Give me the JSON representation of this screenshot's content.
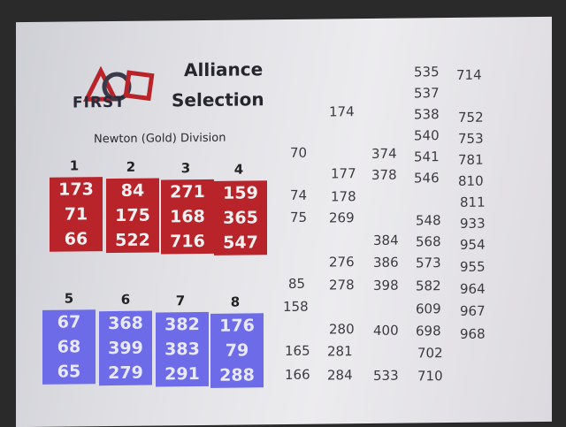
{
  "logo": {
    "text": "FIRST"
  },
  "title": {
    "line1": "Alliance",
    "line2": "Selection"
  },
  "division": "Newton (Gold) Division",
  "alliances": [
    {
      "seed": "1",
      "teams": [
        "173",
        "71",
        "66"
      ],
      "color": "#b8242a"
    },
    {
      "seed": "2",
      "teams": [
        "84",
        "175",
        "522"
      ],
      "color": "#b8242a"
    },
    {
      "seed": "3",
      "teams": [
        "271",
        "168",
        "716"
      ],
      "color": "#b8242a"
    },
    {
      "seed": "4",
      "teams": [
        "159",
        "365",
        "547"
      ],
      "color": "#b8242a"
    },
    {
      "seed": "5",
      "teams": [
        "67",
        "68",
        "65"
      ],
      "color": "#6d6be8"
    },
    {
      "seed": "6",
      "teams": [
        "368",
        "399",
        "279"
      ],
      "color": "#6d6be8"
    },
    {
      "seed": "7",
      "teams": [
        "382",
        "383",
        "291"
      ],
      "color": "#6d6be8"
    },
    {
      "seed": "8",
      "teams": [
        "176",
        "79",
        "288"
      ],
      "color": "#6d6be8"
    }
  ],
  "columns": {
    "col1": [
      "70",
      "74",
      "75",
      "85",
      "158",
      "165",
      "166"
    ],
    "col2": [
      "174",
      "177",
      "178",
      "269",
      "276",
      "278",
      "280",
      "281",
      "284"
    ],
    "col3": [
      "374",
      "378",
      "384",
      "386",
      "398",
      "400",
      "533"
    ],
    "col4": [
      "535",
      "537",
      "538",
      "540",
      "541",
      "546",
      "548",
      "568",
      "573",
      "582",
      "609",
      "698",
      "702",
      "710"
    ],
    "col5": [
      "714",
      "752",
      "753",
      "781",
      "810",
      "811",
      "933",
      "954",
      "955",
      "964",
      "967",
      "968"
    ]
  }
}
